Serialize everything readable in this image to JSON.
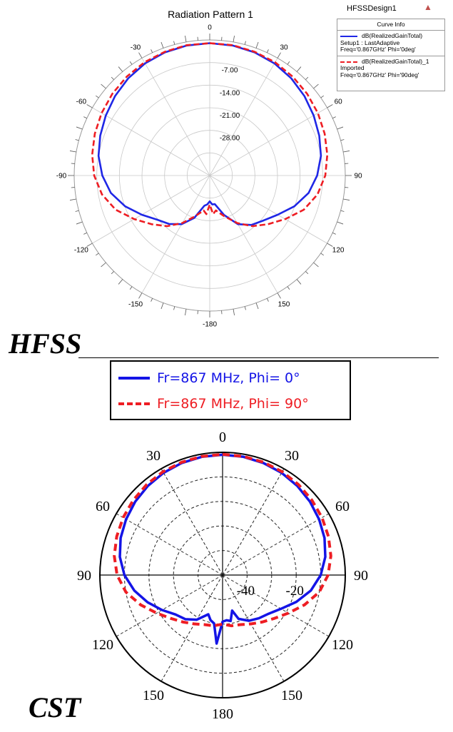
{
  "hfss": {
    "title": "Radiation Pattern 1",
    "design": "HFSSDesign1",
    "legend_header": "Curve Info",
    "legend": [
      {
        "lines": [
          "dB(RealizedGainTotal)",
          "Setup1 : LastAdaptive",
          "Freq='0.867GHz' Phi='0deg'"
        ],
        "style": "solid",
        "color": "#1f27e6"
      },
      {
        "lines": [
          "dB(RealizedGainTotal)_1",
          "Imported",
          "Freq='0.867GHz' Phi='90deg'"
        ],
        "style": "dashed",
        "color": "#ee1d23"
      }
    ],
    "label": "HFSS"
  },
  "cst": {
    "legend": [
      {
        "text": "Fr=867 MHz, Phi= 0°",
        "style": "solid",
        "color": "#1414e6"
      },
      {
        "text": "Fr=867 MHz, Phi= 90°",
        "style": "dashed",
        "color": "#ee1d23"
      }
    ],
    "label": "CST"
  },
  "chart_data": [
    {
      "type": "polar",
      "title": "Radiation Pattern 1",
      "units": "dB",
      "rlim": [
        -42,
        0
      ],
      "radial_ticks": [
        -7.0,
        -14.0,
        -21.0,
        -28.0
      ],
      "radial_tick_labels": [
        "-7.00",
        "-14.00",
        "-21.00",
        "-28.00"
      ],
      "angle_ticks": [
        0,
        30,
        60,
        90,
        120,
        150,
        180,
        -150,
        -120,
        -90,
        -60,
        -30
      ],
      "angle_tick_labels": [
        "0",
        "30",
        "60",
        "90",
        "120",
        "150",
        "-180",
        "-150",
        "-120",
        "-90",
        "-60",
        "-30"
      ],
      "angle_direction": "clockwise",
      "legend_position": "top-right",
      "series": [
        {
          "name": "dB(RealizedGainTotal) Setup1 : LastAdaptive Freq='0.867GHz' Phi='0deg'",
          "theta": [
            0,
            10,
            20,
            30,
            40,
            50,
            60,
            70,
            80,
            90,
            100,
            110,
            120,
            130,
            140,
            150,
            160,
            170,
            175,
            180,
            185,
            190,
            200,
            210,
            220,
            230,
            240,
            250,
            260,
            270,
            280,
            290,
            300,
            310,
            320,
            330,
            340,
            350
          ],
          "r": [
            -1.0,
            -1.1,
            -1.4,
            -1.9,
            -2.7,
            -3.7,
            -4.8,
            -5.9,
            -7.0,
            -8.7,
            -10.9,
            -14.1,
            -17.7,
            -20.3,
            -22.0,
            -24.6,
            -29.0,
            -33.0,
            -33.0,
            -34.0,
            -33.0,
            -32.5,
            -28.0,
            -24.6,
            -22.4,
            -20.7,
            -17.7,
            -14.1,
            -10.9,
            -8.7,
            -7.0,
            -5.9,
            -4.8,
            -3.7,
            -2.7,
            -1.9,
            -1.4,
            -1.1
          ]
        },
        {
          "name": "dB(RealizedGainTotal)_1 Imported Freq='0.867GHz' Phi='90deg'",
          "theta": [
            0,
            10,
            20,
            30,
            40,
            50,
            60,
            70,
            80,
            90,
            100,
            110,
            120,
            130,
            140,
            150,
            160,
            170,
            175,
            180,
            185,
            190,
            200,
            210,
            220,
            230,
            240,
            250,
            260,
            270,
            280,
            290,
            300,
            310,
            320,
            330,
            340,
            350
          ],
          "r": [
            -1.0,
            -1.0,
            -1.2,
            -1.5,
            -2.0,
            -2.6,
            -3.3,
            -4.1,
            -5.0,
            -6.2,
            -8.1,
            -11.0,
            -15.0,
            -18.5,
            -21.5,
            -25.0,
            -28.5,
            -31.0,
            -30.0,
            -33.0,
            -30.0,
            -31.0,
            -28.5,
            -25.0,
            -21.5,
            -18.5,
            -15.0,
            -11.0,
            -8.1,
            -6.2,
            -5.0,
            -4.1,
            -3.3,
            -2.6,
            -2.0,
            -1.5,
            -1.2,
            -1.0
          ]
        }
      ]
    },
    {
      "type": "polar",
      "rlim": [
        -50,
        0
      ],
      "radial_ticks": [
        -40,
        -20
      ],
      "radial_tick_labels": [
        "-40",
        "-20"
      ],
      "angle_ticks": [
        0,
        30,
        60,
        90,
        120,
        150,
        180,
        -150,
        -120,
        -90,
        -60,
        -30
      ],
      "angle_tick_labels": [
        "0",
        "30",
        "60",
        "90",
        "120",
        "150",
        "180",
        "150",
        "120",
        "90",
        "60",
        "30"
      ],
      "angle_direction": "clockwise",
      "legend_position": "top",
      "series": [
        {
          "name": "Fr=867 MHz, Phi= 0°",
          "theta": [
            0,
            10,
            20,
            30,
            40,
            50,
            60,
            70,
            80,
            90,
            100,
            110,
            120,
            130,
            140,
            150,
            160,
            165,
            170,
            175,
            180,
            185,
            190,
            195,
            200,
            210,
            220,
            230,
            240,
            250,
            260,
            270,
            280,
            290,
            300,
            310,
            320,
            330,
            340,
            350
          ],
          "r": [
            -1.0,
            -1.1,
            -1.4,
            -1.9,
            -2.6,
            -3.5,
            -4.6,
            -5.8,
            -7.5,
            -10.0,
            -13.5,
            -18.0,
            -22.5,
            -25.5,
            -27.0,
            -28.5,
            -31.0,
            -35.0,
            -31.0,
            -31.5,
            -31.0,
            -22.0,
            -30.0,
            -31.0,
            -33.0,
            -29.0,
            -26.5,
            -25.0,
            -21.5,
            -17.5,
            -13.5,
            -10.0,
            -7.5,
            -5.8,
            -4.6,
            -3.5,
            -2.6,
            -1.9,
            -1.4,
            -1.1
          ]
        },
        {
          "name": "Fr=867 MHz, Phi= 90°",
          "theta": [
            0,
            10,
            20,
            30,
            40,
            50,
            60,
            70,
            80,
            90,
            100,
            110,
            120,
            130,
            140,
            150,
            160,
            170,
            180,
            190,
            200,
            210,
            220,
            230,
            240,
            250,
            260,
            270,
            280,
            290,
            300,
            310,
            320,
            330,
            340,
            350
          ],
          "r": [
            -0.8,
            -0.9,
            -1.1,
            -1.4,
            -1.9,
            -2.5,
            -3.2,
            -4.1,
            -5.2,
            -7.0,
            -10.0,
            -14.5,
            -19.0,
            -22.5,
            -25.0,
            -27.0,
            -28.5,
            -29.0,
            -30.0,
            -29.0,
            -28.5,
            -27.0,
            -25.0,
            -22.5,
            -19.0,
            -14.5,
            -10.0,
            -7.0,
            -5.2,
            -4.1,
            -3.2,
            -2.5,
            -1.9,
            -1.4,
            -1.1,
            -0.9
          ]
        }
      ]
    }
  ]
}
